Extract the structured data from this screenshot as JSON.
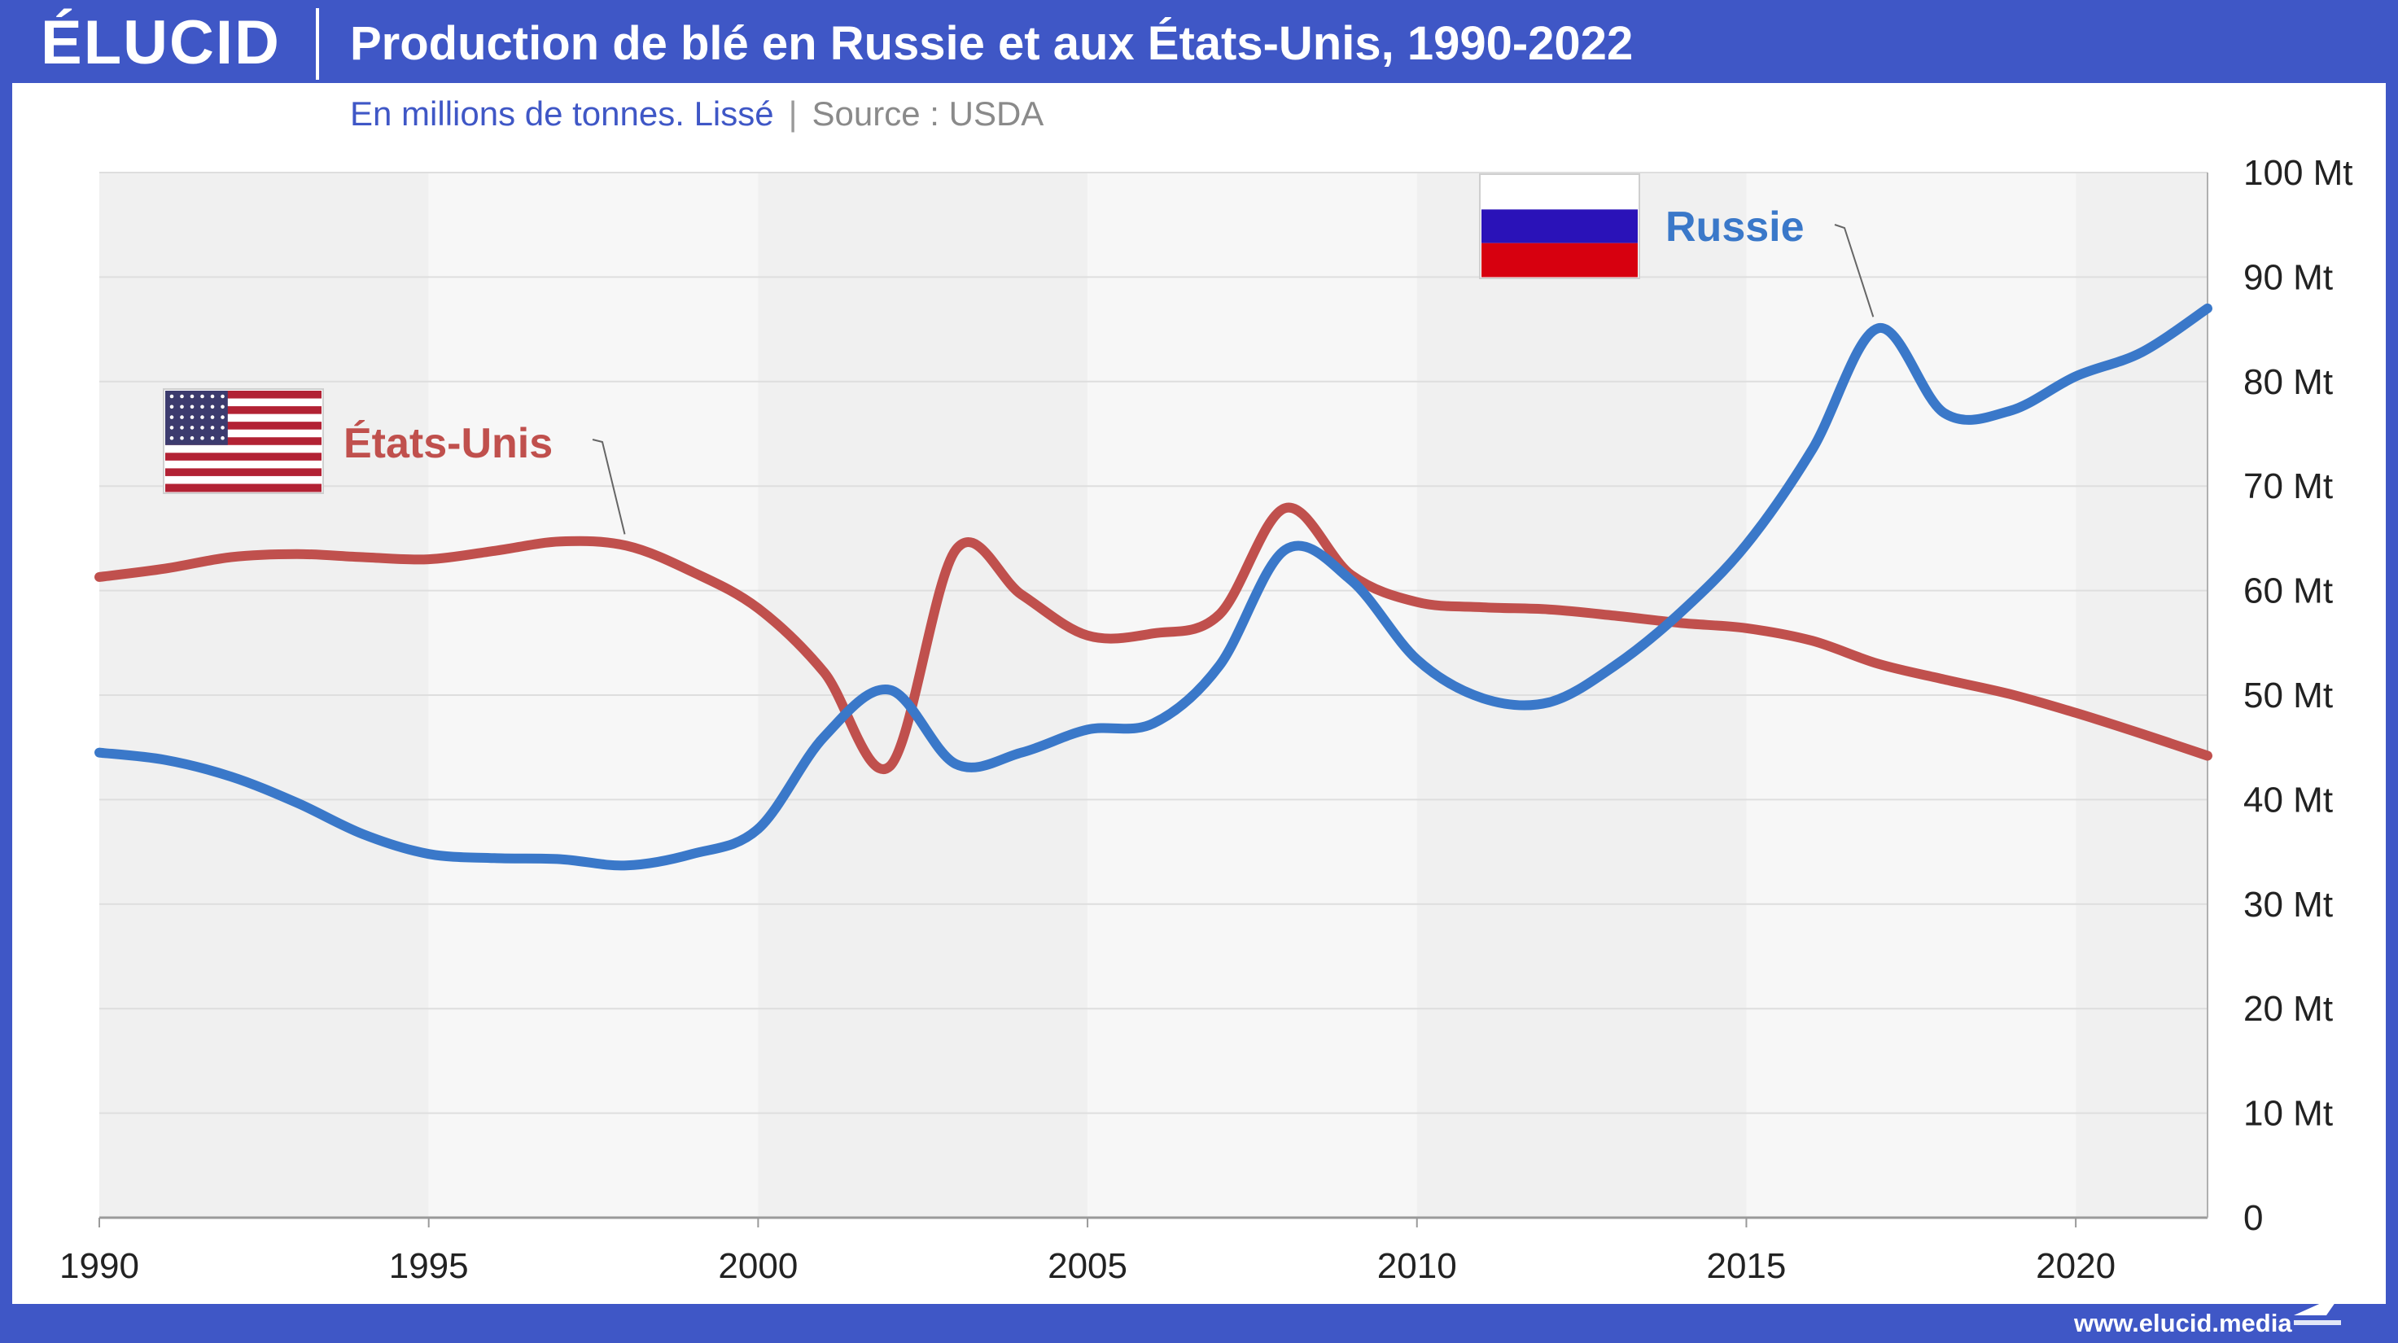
{
  "header": {
    "logo": "ÉLUCID",
    "title": "Production de blé en Russie et aux États-Unis, 1990-2022",
    "subtitle_unit": "En millions de tonnes. Lissé",
    "subtitle_sep": "|",
    "subtitle_source": "Source : USDA"
  },
  "footer": {
    "url": "www.elucid.media"
  },
  "colors": {
    "frame": "#3f57c6",
    "russia": "#3a78c9",
    "usa": "#c0504d",
    "band_dark": "#f0f0f0",
    "band_light": "#f7f7f7"
  },
  "icons": {
    "usa": "usa-flag-icon",
    "russia": "russia-flag-icon",
    "logo_mark": "elucid-mark-icon"
  },
  "chart_data": {
    "type": "line",
    "x_label": "",
    "y_label": "",
    "xlim": [
      1990,
      2022
    ],
    "ylim": [
      0,
      100
    ],
    "x_ticks": [
      1990,
      1995,
      2000,
      2005,
      2010,
      2015,
      2020
    ],
    "y_ticks": [
      {
        "value": 0,
        "label": "0"
      },
      {
        "value": 10,
        "label": "10 Mt"
      },
      {
        "value": 20,
        "label": "20 Mt"
      },
      {
        "value": 30,
        "label": "30 Mt"
      },
      {
        "value": 40,
        "label": "40 Mt"
      },
      {
        "value": 50,
        "label": "50 Mt"
      },
      {
        "value": 60,
        "label": "60 Mt"
      },
      {
        "value": 70,
        "label": "70 Mt"
      },
      {
        "value": 80,
        "label": "80 Mt"
      },
      {
        "value": 90,
        "label": "90 Mt"
      },
      {
        "value": 100,
        "label": "100 Mt"
      }
    ],
    "grid": true,
    "alternating_bands": true,
    "series": [
      {
        "name": "Russie",
        "color": "#3a78c9",
        "x": [
          1990,
          1991,
          1992,
          1993,
          1994,
          1995,
          1996,
          1997,
          1998,
          1999,
          2000,
          2001,
          2002,
          2003,
          2004,
          2005,
          2006,
          2007,
          2008,
          2009,
          2010,
          2011,
          2012,
          2013,
          2014,
          2015,
          2016,
          2017,
          2018,
          2019,
          2020,
          2021,
          2022
        ],
        "y": [
          44.5,
          43.8,
          42.2,
          39.7,
          36.7,
          34.8,
          34.4,
          34.3,
          33.7,
          34.8,
          37.2,
          46.0,
          50.5,
          43.4,
          44.5,
          46.7,
          47.3,
          52.8,
          63.9,
          61.0,
          53.4,
          49.7,
          49.3,
          52.8,
          57.9,
          64.4,
          73.5,
          85.1,
          77.0,
          77.2,
          80.5,
          82.8,
          87.0
        ]
      },
      {
        "name": "États-Unis",
        "color": "#c0504d",
        "x": [
          1990,
          1991,
          1992,
          1993,
          1994,
          1995,
          1996,
          1997,
          1998,
          1999,
          2000,
          2001,
          2002,
          2003,
          2004,
          2005,
          2006,
          2007,
          2008,
          2009,
          2010,
          2011,
          2012,
          2013,
          2014,
          2015,
          2016,
          2017,
          2018,
          2019,
          2020,
          2021,
          2022
        ],
        "y": [
          61.3,
          62.1,
          63.2,
          63.5,
          63.2,
          63.0,
          63.8,
          64.7,
          64.3,
          61.8,
          58.3,
          52.2,
          43.2,
          63.9,
          59.6,
          55.7,
          55.9,
          57.7,
          67.9,
          61.5,
          58.9,
          58.4,
          58.2,
          57.6,
          56.9,
          56.4,
          55.2,
          53.0,
          51.5,
          50.1,
          48.3,
          46.3,
          44.2
        ]
      }
    ],
    "annotations": [
      {
        "series": "États-Unis",
        "text": "États-Unis",
        "flag": "usa-flag-icon"
      },
      {
        "series": "Russie",
        "text": "Russie",
        "flag": "russia-flag-icon"
      }
    ]
  }
}
